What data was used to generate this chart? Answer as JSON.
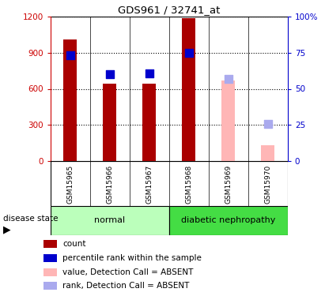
{
  "title": "GDS961 / 32741_at",
  "samples": [
    "GSM15965",
    "GSM15966",
    "GSM15967",
    "GSM15968",
    "GSM15969",
    "GSM15970"
  ],
  "bar_counts": [
    1010,
    640,
    645,
    1185,
    null,
    null
  ],
  "bar_counts_absent": [
    null,
    null,
    null,
    null,
    670,
    130
  ],
  "percentile_ranks_left": [
    875,
    720,
    730,
    895,
    null,
    null
  ],
  "percentile_ranks_absent_left": [
    null,
    null,
    null,
    null,
    680,
    310
  ],
  "left_ticks": [
    0,
    300,
    600,
    900,
    1200
  ],
  "right_ticks": [
    0,
    25,
    50,
    75,
    100
  ],
  "bar_color_present": "#aa0000",
  "bar_color_absent": "#ffb6b6",
  "dot_color_present": "#0000cc",
  "dot_color_absent": "#aaaaee",
  "bar_width": 0.35,
  "dot_size": 55,
  "legend_items": [
    {
      "label": "count",
      "color": "#aa0000"
    },
    {
      "label": "percentile rank within the sample",
      "color": "#0000cc"
    },
    {
      "label": "value, Detection Call = ABSENT",
      "color": "#ffb6b6"
    },
    {
      "label": "rank, Detection Call = ABSENT",
      "color": "#aaaaee"
    }
  ],
  "normal_color": "#bbffbb",
  "diabetic_color": "#44dd44",
  "label_bg_color": "#cccccc",
  "background_color": "#ffffff"
}
